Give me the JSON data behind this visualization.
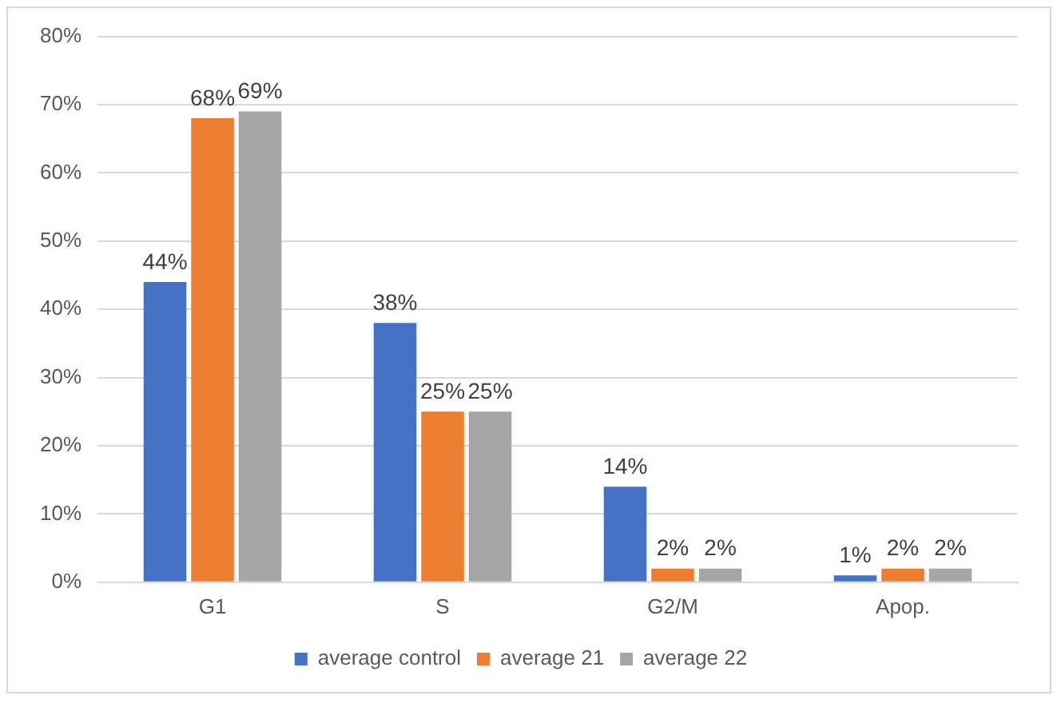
{
  "chart_data": {
    "type": "bar",
    "categories": [
      "G1",
      "S",
      "G2/M",
      "Apop."
    ],
    "series": [
      {
        "name": "average control",
        "color": "#4472c4",
        "values": [
          44,
          38,
          14,
          1
        ],
        "value_labels": [
          "44%",
          "38%",
          "14%",
          "1%"
        ]
      },
      {
        "name": "average 21",
        "color": "#ed7d31",
        "values": [
          68,
          25,
          2,
          2
        ],
        "value_labels": [
          "68%",
          "25%",
          "2%",
          "2%"
        ]
      },
      {
        "name": "average 22",
        "color": "#a5a5a5",
        "values": [
          69,
          25,
          2,
          2
        ],
        "value_labels": [
          "69%",
          "25%",
          "2%",
          "2%"
        ]
      }
    ],
    "ylim": [
      0,
      80
    ],
    "yticks": [
      {
        "value": 0,
        "label": "0%"
      },
      {
        "value": 10,
        "label": "10%"
      },
      {
        "value": 20,
        "label": "20%"
      },
      {
        "value": 30,
        "label": "30%"
      },
      {
        "value": 40,
        "label": "40%"
      },
      {
        "value": 50,
        "label": "50%"
      },
      {
        "value": 60,
        "label": "60%"
      },
      {
        "value": 70,
        "label": "70%"
      },
      {
        "value": 80,
        "label": "80%"
      }
    ],
    "grid": "y",
    "legend": "bottom"
  }
}
